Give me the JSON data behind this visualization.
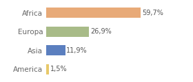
{
  "categories": [
    "America",
    "Asia",
    "Europa",
    "Africa"
  ],
  "values": [
    1.5,
    11.9,
    26.9,
    59.7
  ],
  "labels": [
    "1,5%",
    "11,9%",
    "26,9%",
    "59,7%"
  ],
  "bar_colors": [
    "#e8c96a",
    "#5b7fbf",
    "#a8bb88",
    "#e8aa78"
  ],
  "background_color": "#ffffff",
  "xlim": [
    0,
    78
  ],
  "label_fontsize": 7,
  "tick_fontsize": 7.5
}
